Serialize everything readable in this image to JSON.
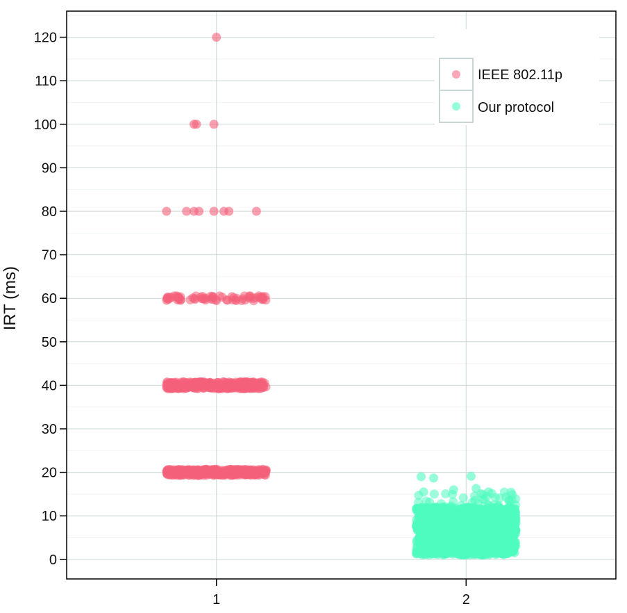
{
  "chart_data": {
    "type": "scatter",
    "xlabel": "",
    "ylabel": "IRT (ms)",
    "ylim": [
      -4.5,
      126
    ],
    "xlim": [
      0.4,
      2.6
    ],
    "x_ticks": [
      "1",
      "2"
    ],
    "y_ticks": [
      "0",
      "10",
      "20",
      "30",
      "40",
      "50",
      "60",
      "70",
      "80",
      "90",
      "100",
      "110",
      "120"
    ],
    "grid": true,
    "legend_position": "top-right",
    "colors": {
      "ieee": "#f4607a",
      "ours": "#4efcbf"
    },
    "series": [
      {
        "name": "IEEE 802.11p",
        "x_category": 1,
        "jitter": 0.2,
        "levels": [
          {
            "y": 20,
            "count": "dense"
          },
          {
            "y": 40,
            "count": "dense"
          },
          {
            "y": 60,
            "count": "many"
          },
          {
            "y": 80,
            "count": "few"
          },
          {
            "y": 100,
            "count": "few"
          },
          {
            "y": 120,
            "count": "single"
          }
        ],
        "point_values": [
          120,
          100,
          100,
          100,
          80,
          80,
          80,
          80,
          80,
          80,
          80
        ]
      },
      {
        "name": "Our protocol",
        "x_category": 2,
        "jitter": 0.2,
        "y_range": [
          1,
          12
        ],
        "outliers": [
          13,
          13.5,
          14,
          14.5,
          15,
          15.5,
          16,
          17,
          18.5,
          19
        ]
      }
    ]
  }
}
